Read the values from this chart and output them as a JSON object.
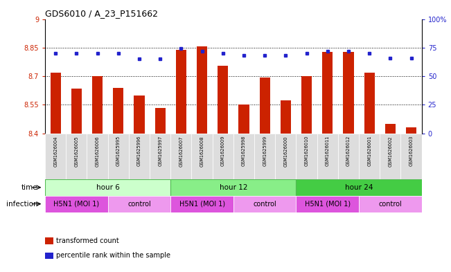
{
  "title": "GDS6010 / A_23_P151662",
  "samples": [
    "GSM1626004",
    "GSM1626005",
    "GSM1626006",
    "GSM1625995",
    "GSM1625996",
    "GSM1625997",
    "GSM1626007",
    "GSM1626008",
    "GSM1626009",
    "GSM1625998",
    "GSM1625999",
    "GSM1626000",
    "GSM1626010",
    "GSM1626011",
    "GSM1626012",
    "GSM1626001",
    "GSM1626002",
    "GSM1626003"
  ],
  "bar_values": [
    8.72,
    8.635,
    8.7,
    8.637,
    8.6,
    8.535,
    8.84,
    8.855,
    8.755,
    8.552,
    8.692,
    8.572,
    8.702,
    8.828,
    8.828,
    8.718,
    8.45,
    8.432
  ],
  "dot_values": [
    70,
    70,
    70,
    70,
    65,
    65,
    74,
    72,
    70,
    68,
    68,
    68,
    70,
    72,
    72,
    70,
    66,
    66
  ],
  "ylim_left": [
    8.4,
    9.0
  ],
  "ylim_right": [
    0,
    100
  ],
  "yticks_left": [
    8.4,
    8.55,
    8.7,
    8.85,
    9.0
  ],
  "ytick_labels_left": [
    "8.4",
    "8.55",
    "8.7",
    "8.85",
    "9"
  ],
  "yticks_right": [
    0,
    25,
    50,
    75,
    100
  ],
  "ytick_labels_right": [
    "0",
    "25",
    "50",
    "75",
    "100%"
  ],
  "bar_color": "#cc2200",
  "dot_color": "#2222cc",
  "bar_width": 0.5,
  "time_groups": [
    {
      "label": "hour 6",
      "start": 0,
      "end": 6,
      "color": "#ccffcc",
      "edge": "#55bb55"
    },
    {
      "label": "hour 12",
      "start": 6,
      "end": 12,
      "color": "#88ee88",
      "edge": "#55bb55"
    },
    {
      "label": "hour 24",
      "start": 12,
      "end": 18,
      "color": "#44cc44",
      "edge": "#55bb55"
    }
  ],
  "inf_groups": [
    {
      "label": "H5N1 (MOI 1)",
      "start": 0,
      "end": 3,
      "color": "#dd55dd"
    },
    {
      "label": "control",
      "start": 3,
      "end": 6,
      "color": "#ee99ee"
    },
    {
      "label": "H5N1 (MOI 1)",
      "start": 6,
      "end": 9,
      "color": "#dd55dd"
    },
    {
      "label": "control",
      "start": 9,
      "end": 12,
      "color": "#ee99ee"
    },
    {
      "label": "H5N1 (MOI 1)",
      "start": 12,
      "end": 15,
      "color": "#dd55dd"
    },
    {
      "label": "control",
      "start": 15,
      "end": 18,
      "color": "#ee99ee"
    }
  ],
  "grid_vals": [
    8.55,
    8.7,
    8.85
  ],
  "left_color": "#cc2200",
  "right_color": "#2222cc",
  "legend_items": [
    {
      "label": "transformed count",
      "color": "#cc2200"
    },
    {
      "label": "percentile rank within the sample",
      "color": "#2222cc"
    }
  ]
}
